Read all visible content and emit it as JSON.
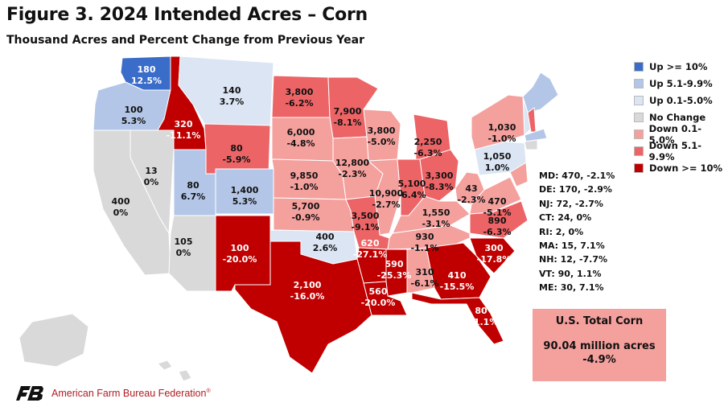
{
  "title": "Figure 3. 2024 Intended Acres – Corn",
  "subtitle": "Thousand Acres and Percent Change from Previous Year",
  "colors": {
    "up10": "#3a6cc9",
    "up5": "#b4c6e7",
    "up0": "#dbe5f4",
    "nochange": "#d9d9d9",
    "down0": "#f4a09d",
    "down5": "#ec6466",
    "down10": "#c00000"
  },
  "legend": [
    {
      "label": "Up >= 10%",
      "color": "#3a6cc9"
    },
    {
      "label": "Up 5.1-9.9%",
      "color": "#b4c6e7"
    },
    {
      "label": "Up 0.1-5.0%",
      "color": "#dbe5f4"
    },
    {
      "label": "No Change",
      "color": "#d9d9d9"
    },
    {
      "label": "Down 0.1-5.0%",
      "color": "#f4a09d"
    },
    {
      "label": "Down 5.1-9.9%",
      "color": "#ec6466"
    },
    {
      "label": "Down >= 10%",
      "color": "#c00000"
    }
  ],
  "states": [
    {
      "name": "WA",
      "acres": "180",
      "change": "12.5%"
    },
    {
      "name": "OR",
      "acres": "100",
      "change": "5.3%"
    },
    {
      "name": "ID",
      "acres": "320",
      "change": "-11.1%"
    },
    {
      "name": "MT",
      "acres": "140",
      "change": "3.7%"
    },
    {
      "name": "ND",
      "acres": "3,800",
      "change": "-6.2%"
    },
    {
      "name": "MN",
      "acres": "7,900",
      "change": "-8.1%"
    },
    {
      "name": "WY",
      "acres": "80",
      "change": "-5.9%"
    },
    {
      "name": "SD",
      "acres": "6,000",
      "change": "-4.8%"
    },
    {
      "name": "WI",
      "acres": "3,800",
      "change": "-5.0%"
    },
    {
      "name": "MI",
      "acres": "2,250",
      "change": "-6.3%"
    },
    {
      "name": "NY",
      "acres": "1,030",
      "change": "-1.0%"
    },
    {
      "name": "NV",
      "acres": "13",
      "change": "0%"
    },
    {
      "name": "CA",
      "acres": "400",
      "change": "0%"
    },
    {
      "name": "UT",
      "acres": "80",
      "change": "6.7%"
    },
    {
      "name": "CO",
      "acres": "1,400",
      "change": "5.3%"
    },
    {
      "name": "NE",
      "acres": "9,850",
      "change": "-1.0%"
    },
    {
      "name": "IA",
      "acres": "12,800",
      "change": "-2.3%"
    },
    {
      "name": "IL",
      "acres": "10,900",
      "change": "-2.7%"
    },
    {
      "name": "IN",
      "acres": "5,100",
      "change": "-6.4%"
    },
    {
      "name": "OH",
      "acres": "3,300",
      "change": "-8.3%"
    },
    {
      "name": "PA",
      "acres": "1,050",
      "change": "1.0%"
    },
    {
      "name": "WV",
      "acres": "43",
      "change": "-2.3%"
    },
    {
      "name": "VA",
      "acres": "470",
      "change": "-5.1%"
    },
    {
      "name": "KS",
      "acres": "5,700",
      "change": "-0.9%"
    },
    {
      "name": "MO",
      "acres": "3,500",
      "change": "-9.1%"
    },
    {
      "name": "KY",
      "acres": "1,550",
      "change": "-3.1%"
    },
    {
      "name": "NC",
      "acres": "890",
      "change": "-6.3%"
    },
    {
      "name": "AZ",
      "acres": "105",
      "change": "0%"
    },
    {
      "name": "NM",
      "acres": "100",
      "change": "-20.0%"
    },
    {
      "name": "OK",
      "acres": "400",
      "change": "2.6%"
    },
    {
      "name": "AR",
      "acres": "620",
      "change": "-27.1%"
    },
    {
      "name": "TN",
      "acres": "930",
      "change": "-1.1%"
    },
    {
      "name": "SC",
      "acres": "300",
      "change": "-17.8%"
    },
    {
      "name": "MS",
      "acres": "590",
      "change": "-25.3%"
    },
    {
      "name": "AL",
      "acres": "310",
      "change": "-6.1%"
    },
    {
      "name": "GA",
      "acres": "410",
      "change": "-15.5%"
    },
    {
      "name": "TX",
      "acres": "2,100",
      "change": "-16.0%"
    },
    {
      "name": "LA",
      "acres": "560",
      "change": "-20.0%"
    },
    {
      "name": "FL",
      "acres": "80",
      "change": "-11.1%"
    }
  ],
  "small_states": [
    "MD: 470, -2.1%",
    "DE: 170, -2.9%",
    "NJ: 72, -2.7%",
    "CT: 24, 0%",
    "RI: 2, 0%",
    "MA: 15, 7.1%",
    "NH: 12, -7.7%",
    "VT: 90, 1.1%",
    "ME: 30, 7.1%"
  ],
  "total": {
    "title": "U.S. Total Corn",
    "value": "90.04 million acres",
    "change": "-4.9%"
  },
  "footer": {
    "org": "American Farm Bureau Federation",
    "registered": "®"
  }
}
